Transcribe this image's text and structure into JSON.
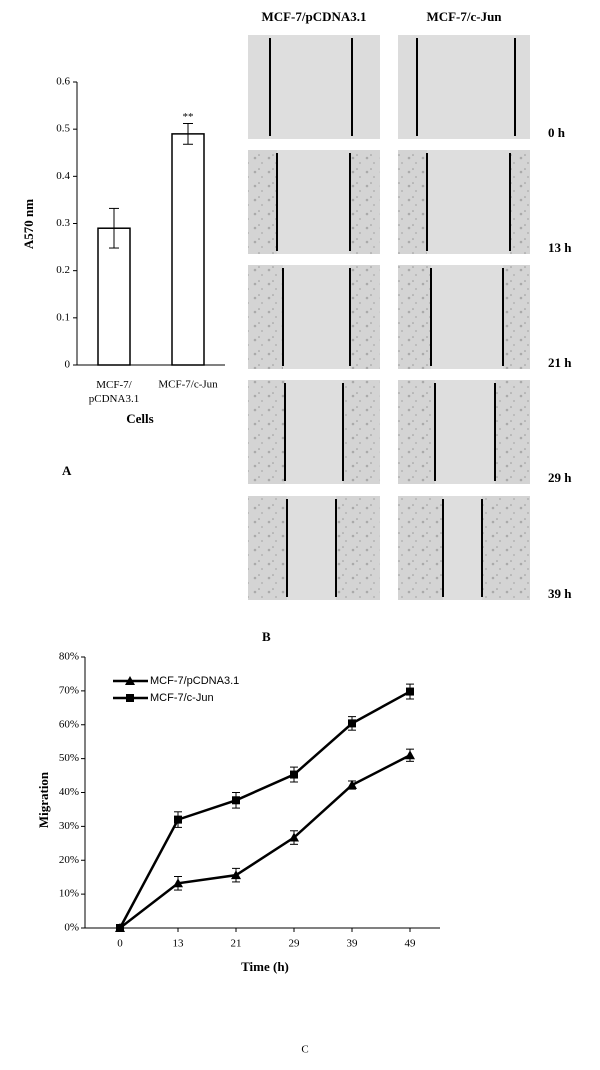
{
  "chart_data": [
    {
      "type": "bar",
      "label": "A",
      "ylabel": "A570 nm",
      "xlabel": "Cells",
      "categories": [
        "MCF-7/\npCDNA3.1",
        "MCF-7/c-Jun"
      ],
      "values": [
        0.29,
        0.49
      ],
      "errors": [
        0.042,
        0.022
      ],
      "annotation": "**",
      "color": "#ffffff",
      "ylim": [
        0,
        0.6
      ],
      "yticks": [
        0,
        0.1,
        0.2,
        0.3,
        0.4,
        0.5,
        0.6
      ]
    },
    {
      "type": "line",
      "label": "C",
      "ylabel": "Migration",
      "xlabel": "Time (h)",
      "categories": [
        "0",
        "13",
        "21",
        "29",
        "39",
        "49"
      ],
      "series": [
        {
          "name": "MCF-7/pCDNA3.1",
          "color": "#000000",
          "marker": "triangle",
          "values": [
            0,
            13.2,
            15.6,
            26.7,
            42.2,
            51
          ],
          "errors": [
            0,
            2,
            2,
            2,
            1.2,
            1.8
          ]
        },
        {
          "name": "MCF-7/c-Jun",
          "color": "#000000",
          "marker": "square",
          "values": [
            0,
            32,
            37.7,
            45.3,
            60.4,
            69.8
          ],
          "errors": [
            0,
            2.3,
            2.3,
            2.2,
            2,
            2.2
          ]
        }
      ],
      "ylim": [
        0,
        80
      ],
      "yticks": [
        {
          "value": 0,
          "label": "0%"
        },
        {
          "value": 10,
          "label": "10%"
        },
        {
          "value": 20,
          "label": "20%"
        },
        {
          "value": 30,
          "label": "30%"
        },
        {
          "value": 40,
          "label": "40%"
        },
        {
          "value": 50,
          "label": "50%"
        },
        {
          "value": 60,
          "label": "60%"
        },
        {
          "value": 70,
          "label": "70%"
        },
        {
          "value": 80,
          "label": "80%"
        }
      ],
      "legend": "upper left"
    }
  ],
  "microscopy": {
    "label": "B",
    "columns": [
      "MCF-7/pCDNA3.1",
      "MCF-7/c-Jun"
    ],
    "rows": [
      "0 h",
      "13 h",
      "21 h",
      "29 h",
      "39 h"
    ]
  }
}
